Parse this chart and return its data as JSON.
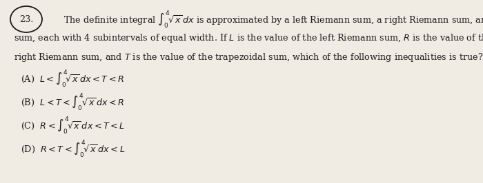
{
  "background_color": "#f0ece4",
  "fig_width": 7.0,
  "fig_height": 2.66,
  "dpi": 100,
  "text_color": "#1a1a1a",
  "font_size": 9.2,
  "number": "23.",
  "line1": "The definite integral $\\int_0^4 \\!\\sqrt{x}\\, dx$ is approximated by a left Riemann sum, a right Riemann sum, and a trapezoidal",
  "line2": "sum, each with 4 subintervals of equal width. If $L$ is the value of the left Riemann sum, $R$ is the value of the",
  "line3": "right Riemann sum, and $T$ is the value of the trapezoidal sum, which of the following inequalities is true?",
  "opt_A": "(A)  $L < \\int_0^4 \\!\\sqrt{x}\\, dx < T < R$",
  "opt_B": "(B)  $L < T < \\int_0^4 \\!\\sqrt{x}\\, dx < R$",
  "opt_C": "(C)  $R < \\int_0^4 \\!\\sqrt{x}\\, dx < T < L$",
  "opt_D": "(D)  $R < T < \\int_0^4 \\!\\sqrt{x}\\, dx < L$"
}
